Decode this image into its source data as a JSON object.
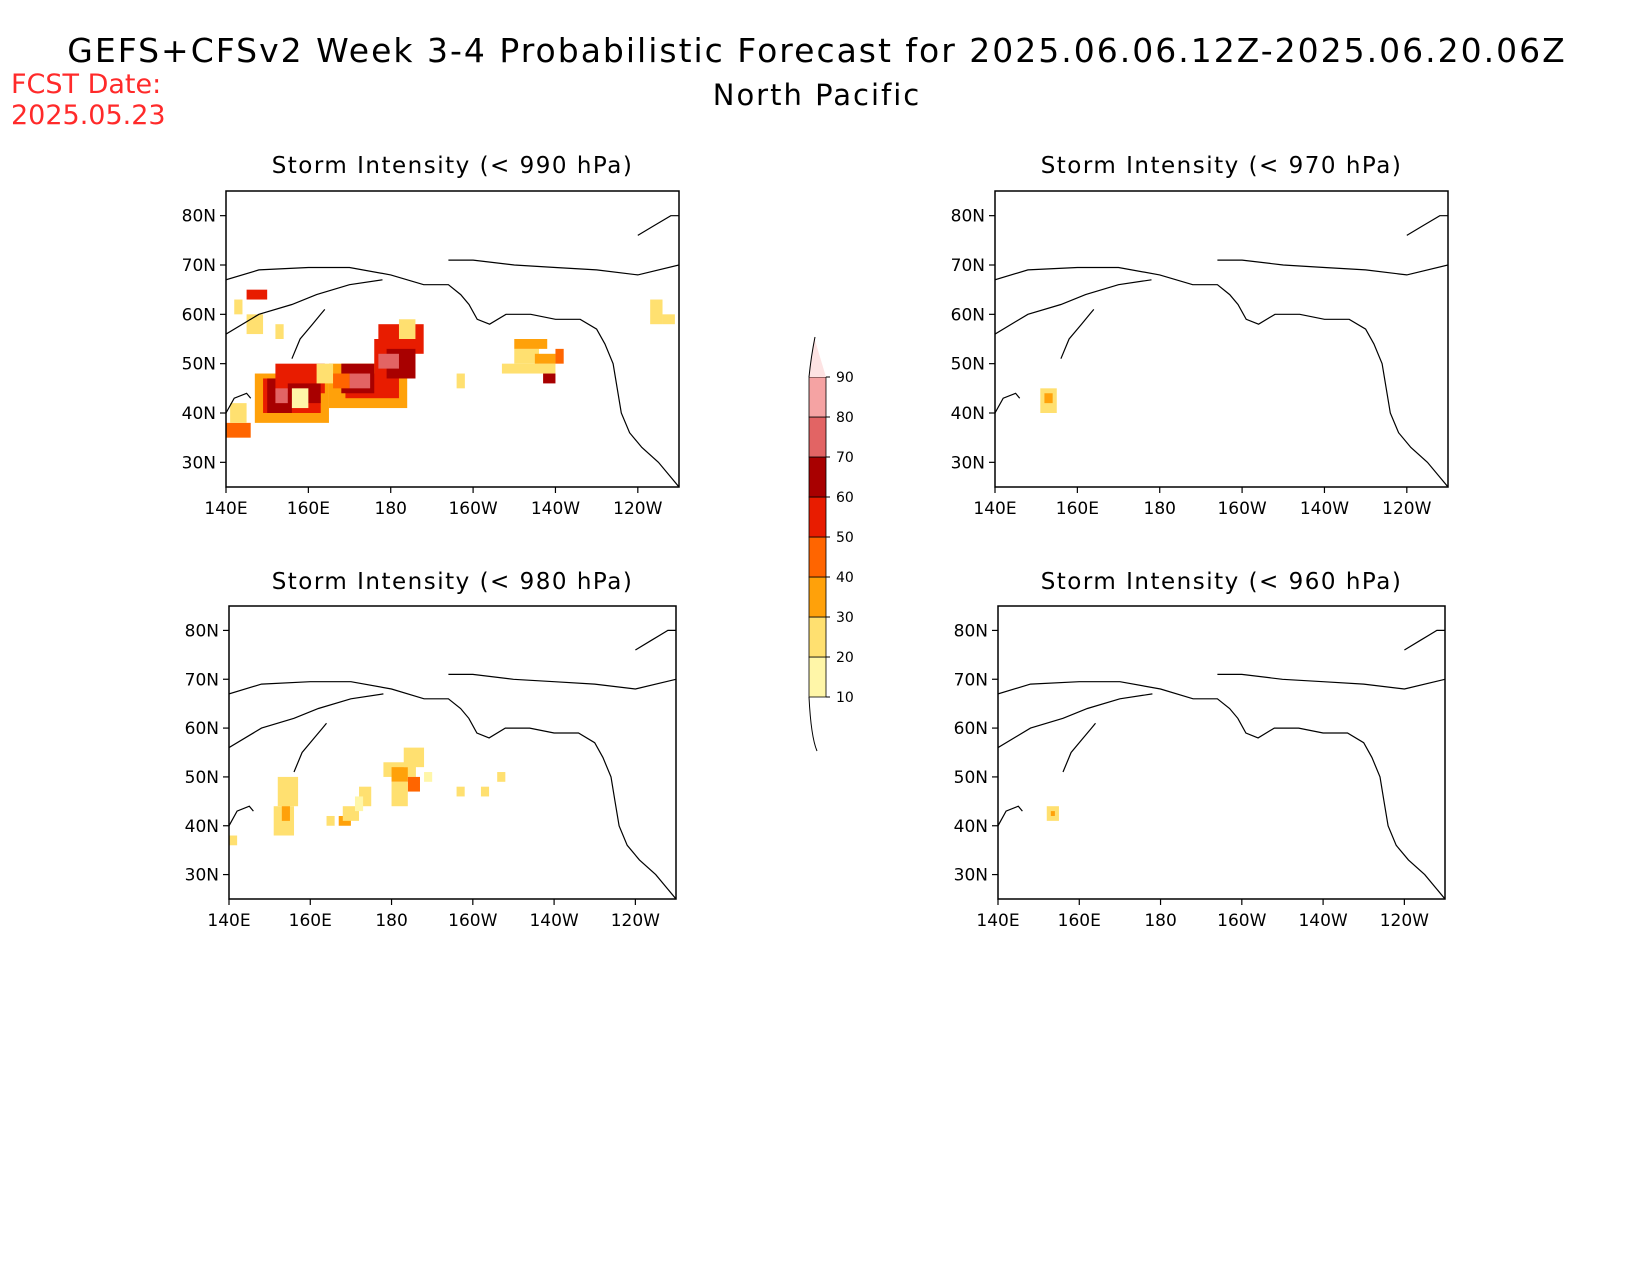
{
  "header": {
    "title": "GEFS+CFSv2 Week 3-4 Probabilistic Forecast for 2025.06.06.12Z-2025.06.20.06Z",
    "subtitle": "North Pacific",
    "fcst_label": "FCST Date:",
    "fcst_date": "2025.05.23",
    "fcst_color": "#ff2a2a"
  },
  "axes": {
    "lon_ticks": [
      "140E",
      "160E",
      "180",
      "160W",
      "140W",
      "120W"
    ],
    "lat_ticks": [
      "80N",
      "70N",
      "60N",
      "50N",
      "40N",
      "30N"
    ],
    "lon_values": [
      140,
      160,
      180,
      200,
      220,
      240
    ],
    "lat_values": [
      80,
      70,
      60,
      50,
      40,
      30
    ],
    "lon_range": [
      140,
      250
    ],
    "lat_range": [
      25,
      85
    ]
  },
  "legend": {
    "levels": [
      "10",
      "20",
      "30",
      "40",
      "50",
      "60",
      "70",
      "80",
      "90"
    ],
    "colors": [
      "#fff6a8",
      "#ffe070",
      "#ffa10a",
      "#ff6500",
      "#e81c00",
      "#a80000",
      "#e26464",
      "#f5a3a3",
      "#fde3e3"
    ]
  },
  "panels": [
    {
      "id": "p990",
      "title": "Storm Intensity (< 990 hPa)",
      "cells": [
        [
          142,
          63,
          144,
          60,
          1
        ],
        [
          145,
          65,
          150,
          63,
          4
        ],
        [
          145,
          60,
          149,
          56,
          1
        ],
        [
          152,
          58,
          154,
          55,
          1
        ],
        [
          140,
          38,
          146,
          35,
          3
        ],
        [
          141,
          42,
          145,
          38,
          1
        ],
        [
          147,
          48,
          165,
          38,
          2
        ],
        [
          149,
          47,
          163,
          40,
          4
        ],
        [
          150,
          47,
          156,
          40,
          5
        ],
        [
          152,
          50,
          164,
          44,
          4
        ],
        [
          155,
          46,
          163,
          42,
          5
        ],
        [
          152,
          45,
          155,
          42,
          6
        ],
        [
          156,
          45,
          160,
          41,
          0
        ],
        [
          165,
          50,
          184,
          41,
          2
        ],
        [
          169,
          48,
          182,
          43,
          4
        ],
        [
          176,
          55,
          186,
          47,
          4
        ],
        [
          177,
          58,
          188,
          52,
          4
        ],
        [
          168,
          50,
          176,
          44,
          5
        ],
        [
          170,
          48,
          175,
          45,
          6
        ],
        [
          179,
          53,
          186,
          47,
          5
        ],
        [
          177,
          52,
          182,
          49,
          6
        ],
        [
          182,
          59,
          186,
          55,
          1
        ],
        [
          162,
          50,
          166,
          46,
          1
        ],
        [
          166,
          48,
          170,
          45,
          3
        ],
        [
          196,
          48,
          198,
          45,
          1
        ],
        [
          207,
          50,
          220,
          48,
          1
        ],
        [
          210,
          53,
          216,
          50,
          1
        ],
        [
          210,
          55,
          218,
          53,
          2
        ],
        [
          215,
          52,
          220,
          50,
          2
        ],
        [
          220,
          53,
          222,
          50,
          3
        ],
        [
          217,
          48,
          220,
          46,
          5
        ],
        [
          243,
          63,
          246,
          58,
          1
        ],
        [
          246,
          60,
          249,
          58,
          1
        ]
      ]
    },
    {
      "id": "p970",
      "title": "Storm Intensity (< 970 hPa)",
      "cells": [
        [
          151,
          45,
          155,
          40,
          1
        ],
        [
          152,
          44,
          154,
          42,
          2
        ]
      ]
    },
    {
      "id": "p980",
      "title": "Storm Intensity (< 980 hPa)",
      "cells": [
        [
          152,
          50,
          157,
          44,
          1
        ],
        [
          151,
          44,
          156,
          38,
          1
        ],
        [
          153,
          44,
          155,
          41,
          2
        ],
        [
          140,
          38,
          142,
          36,
          1
        ],
        [
          167,
          42,
          170,
          40,
          2
        ],
        [
          168,
          44,
          172,
          41,
          1
        ],
        [
          172,
          48,
          175,
          44,
          1
        ],
        [
          171,
          46,
          173,
          43,
          0
        ],
        [
          178,
          53,
          186,
          50,
          1
        ],
        [
          180,
          52,
          184,
          49,
          2
        ],
        [
          184,
          50,
          187,
          47,
          3
        ],
        [
          183,
          56,
          188,
          52,
          1
        ],
        [
          180,
          49,
          184,
          44,
          1
        ],
        [
          164,
          42,
          166,
          40,
          1
        ],
        [
          188,
          51,
          190,
          49,
          0
        ],
        [
          196,
          48,
          198,
          46,
          1
        ],
        [
          202,
          48,
          204,
          46,
          1
        ],
        [
          206,
          51,
          208,
          49,
          1
        ]
      ]
    },
    {
      "id": "p960",
      "title": "Storm Intensity (< 960 hPa)",
      "cells": [
        [
          152,
          44,
          155,
          41,
          1
        ],
        [
          153,
          43,
          154,
          42,
          2
        ]
      ]
    }
  ]
}
